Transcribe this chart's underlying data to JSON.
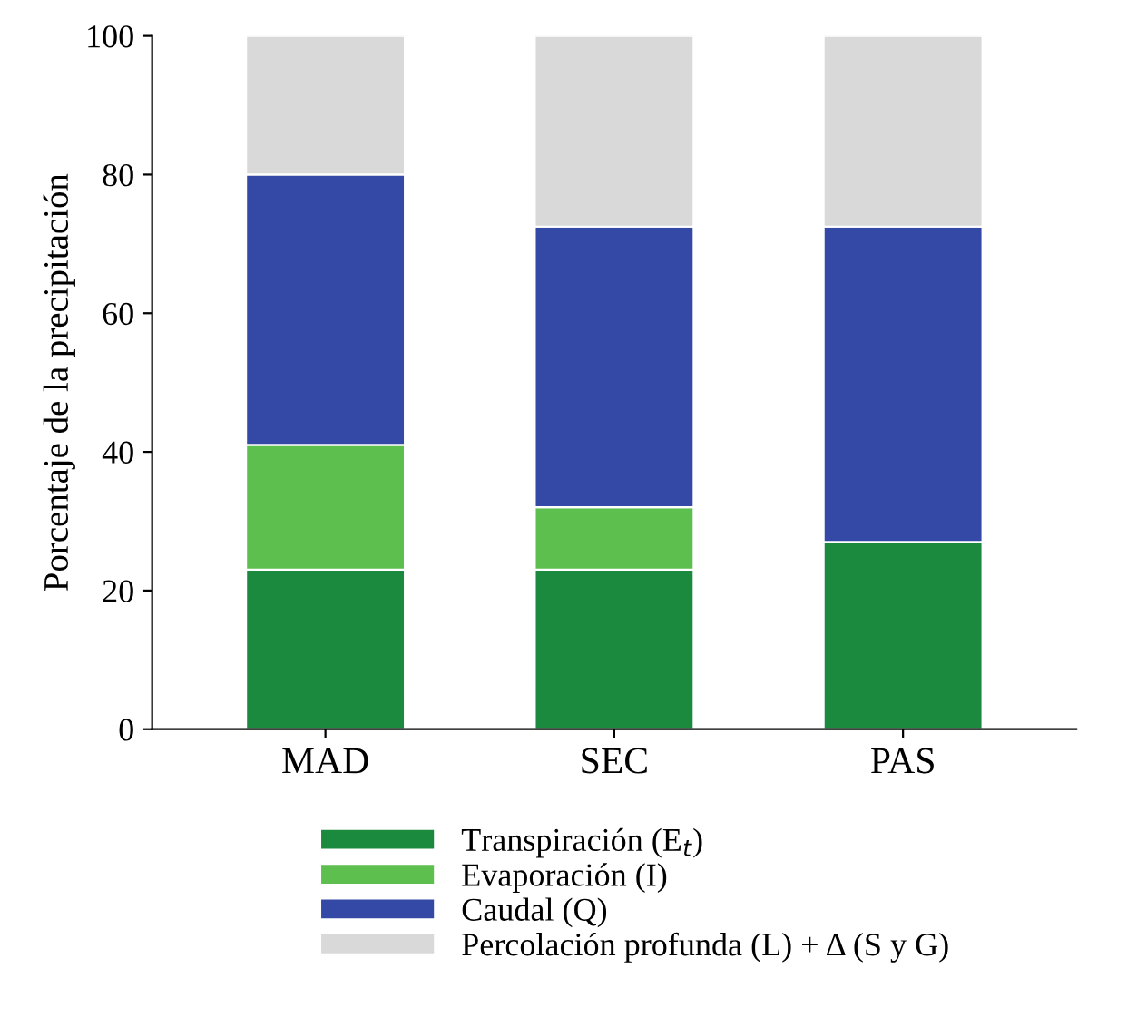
{
  "chart_data": {
    "type": "bar",
    "stacked": true,
    "ylabel": "Porcentaje de la precipitación",
    "categories": [
      "MAD",
      "SEC",
      "PAS"
    ],
    "series": [
      {
        "name": "Transpiración (E$_{t}$)",
        "color": "#1b8a3e",
        "values": [
          23,
          23,
          27
        ]
      },
      {
        "name": "Evaporación (I)",
        "color": "#5dbf4e",
        "values": [
          18,
          9,
          0
        ]
      },
      {
        "name": "Caudal (Q)",
        "color": "#3449a6",
        "values": [
          39,
          40.5,
          45.5
        ]
      },
      {
        "name": "Percolación profunda (L) + Δ (S y G)",
        "color": "#d9d9d9",
        "values": [
          20,
          27.5,
          27.5
        ]
      }
    ],
    "ylim": [
      0,
      100
    ],
    "yticks": [
      0,
      20,
      40,
      60,
      80,
      100
    ],
    "grid": false,
    "legend": "bottom"
  }
}
